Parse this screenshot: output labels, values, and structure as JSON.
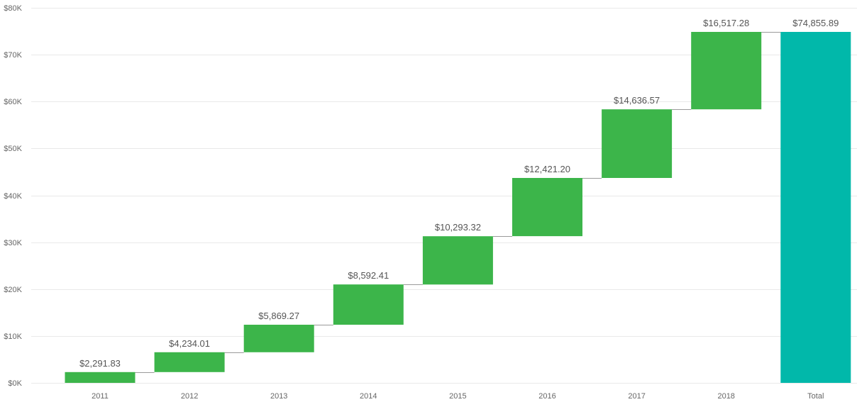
{
  "chart_data": {
    "type": "bar",
    "subtype": "waterfall",
    "categories": [
      "2011",
      "2012",
      "2013",
      "2014",
      "2015",
      "2016",
      "2017",
      "2018",
      "Total"
    ],
    "values": [
      2291.83,
      4234.01,
      5869.27,
      8592.41,
      10293.32,
      12421.2,
      14636.57,
      16517.28,
      74855.89
    ],
    "data_labels": [
      "$2,291.83",
      "$4,234.01",
      "$5,869.27",
      "$8,592.41",
      "$10,293.32",
      "$12,421.20",
      "$14,636.57",
      "$16,517.28",
      "$74,855.89"
    ],
    "total_index": 8,
    "y_ticks": [
      0,
      10000,
      20000,
      30000,
      40000,
      50000,
      60000,
      70000,
      80000
    ],
    "y_tick_labels": [
      "$0K",
      "$10K",
      "$20K",
      "$30K",
      "$40K",
      "$50K",
      "$60K",
      "$70K",
      "$80K"
    ],
    "ylim": [
      0,
      80000
    ],
    "grid": true,
    "colors": {
      "increase": "#3cb54a",
      "total": "#01b8aa"
    },
    "title": "",
    "xlabel": "",
    "ylabel": ""
  }
}
